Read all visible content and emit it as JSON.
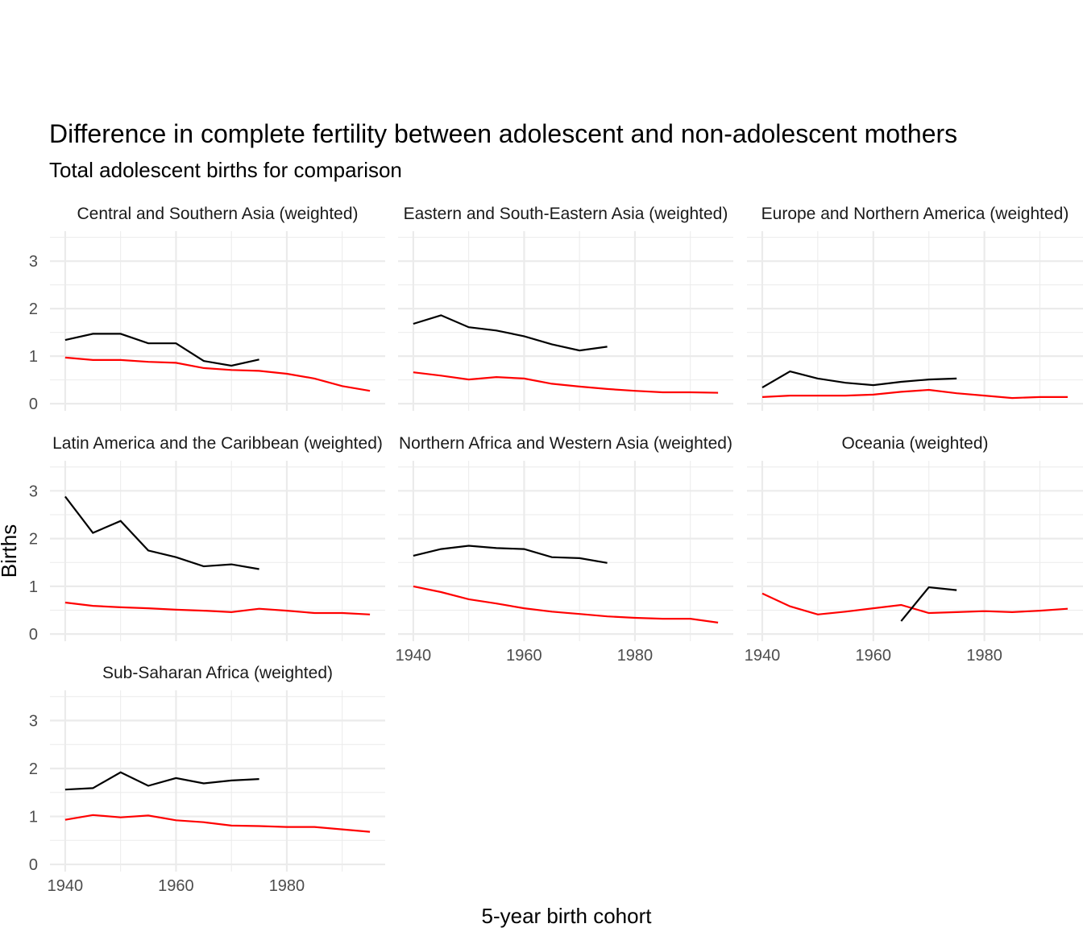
{
  "chart_data": {
    "type": "line",
    "title": "Difference in complete fertility between adolescent and non-adolescent mothers",
    "subtitle": "Total adolescent births for comparison",
    "xlabel": "5-year birth cohort",
    "ylabel": "Births",
    "xlim": [
      1937.25,
      1997.75
    ],
    "ylim": [
      -0.15,
      3.63
    ],
    "x_ticks": [
      "1940",
      "1960",
      "1980"
    ],
    "y_ticks": [
      "0",
      "1",
      "2",
      "3"
    ],
    "grid": true,
    "x": [
      1940,
      1945,
      1950,
      1955,
      1960,
      1965,
      1970,
      1975,
      1980,
      1985,
      1990,
      1995
    ],
    "series_colors": {
      "difference": "#000000",
      "total_adolescent": "#ff0000"
    },
    "panels": [
      {
        "title": "Central and Southern Asia (weighted)",
        "black": [
          1.34,
          1.47,
          1.47,
          1.27,
          1.27,
          0.9,
          0.8,
          0.93,
          null,
          null,
          null,
          null
        ],
        "red": [
          0.97,
          0.92,
          0.92,
          0.88,
          0.86,
          0.75,
          0.71,
          0.69,
          0.63,
          0.53,
          0.37,
          0.27
        ]
      },
      {
        "title": "Eastern and South-Eastern Asia (weighted)",
        "black": [
          1.68,
          1.86,
          1.61,
          1.54,
          1.42,
          1.25,
          1.12,
          1.2,
          null,
          null,
          null,
          null
        ],
        "red": [
          0.66,
          0.59,
          0.51,
          0.56,
          0.53,
          0.42,
          0.36,
          0.31,
          0.27,
          0.24,
          0.24,
          0.23
        ]
      },
      {
        "title": "Europe and Northern America (weighted)",
        "black": [
          0.34,
          0.68,
          0.53,
          0.44,
          0.39,
          0.46,
          0.51,
          0.53,
          null,
          null,
          null,
          null
        ],
        "red": [
          0.14,
          0.17,
          0.17,
          0.17,
          0.19,
          0.25,
          0.29,
          0.22,
          0.17,
          0.12,
          0.14,
          0.14
        ]
      },
      {
        "title": "Latin America and the Caribbean (weighted)",
        "black": [
          2.88,
          2.12,
          2.37,
          1.75,
          1.61,
          1.42,
          1.46,
          1.36,
          null,
          null,
          null,
          null
        ],
        "red": [
          0.66,
          0.59,
          0.56,
          0.54,
          0.51,
          0.49,
          0.46,
          0.53,
          0.49,
          0.44,
          0.44,
          0.41
        ]
      },
      {
        "title": "Northern Africa and Western Asia (weighted)",
        "black": [
          1.64,
          1.78,
          1.85,
          1.8,
          1.78,
          1.61,
          1.59,
          1.49,
          null,
          null,
          null,
          null
        ],
        "red": [
          1.0,
          0.88,
          0.73,
          0.64,
          0.54,
          0.47,
          0.42,
          0.37,
          0.34,
          0.32,
          0.32,
          0.24
        ]
      },
      {
        "title": "Oceania (weighted)",
        "black": [
          null,
          null,
          null,
          null,
          null,
          0.27,
          0.98,
          0.92,
          null,
          null,
          null,
          null
        ],
        "red": [
          0.85,
          0.58,
          0.41,
          0.47,
          0.54,
          0.61,
          0.44,
          0.46,
          0.48,
          0.46,
          0.49,
          0.53
        ]
      },
      {
        "title": "Sub-Saharan Africa (weighted)",
        "black": [
          1.56,
          1.59,
          1.92,
          1.64,
          1.8,
          1.69,
          1.75,
          1.78,
          null,
          null,
          null,
          null
        ],
        "red": [
          0.93,
          1.03,
          0.98,
          1.02,
          0.92,
          0.88,
          0.81,
          0.8,
          0.78,
          0.78,
          0.73,
          0.68
        ]
      }
    ]
  }
}
